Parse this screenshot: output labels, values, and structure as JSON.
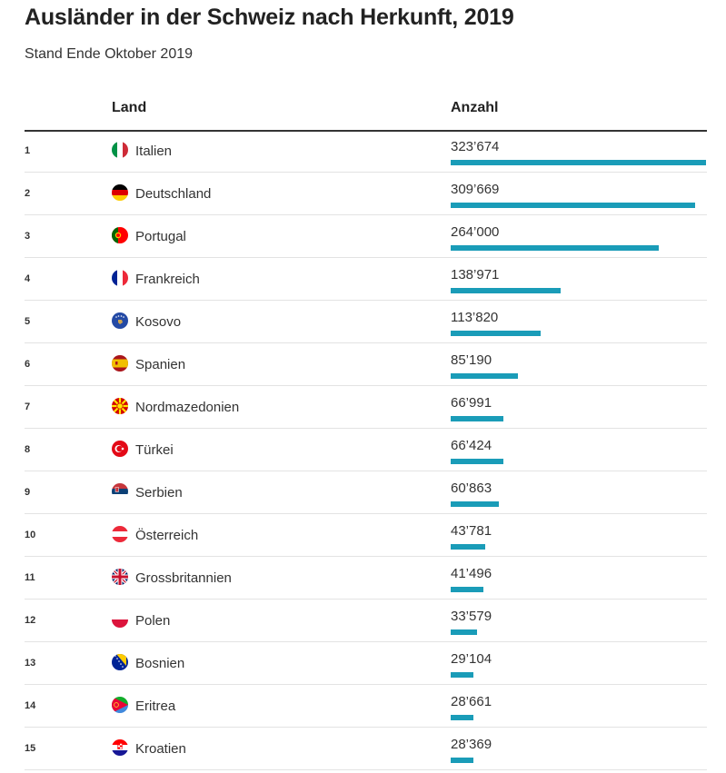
{
  "header": {
    "title": "Ausländer in der Schweiz nach Herkunft, 2019",
    "subtitle": "Stand Ende Oktober 2019"
  },
  "table": {
    "col_land": "Land",
    "col_anzahl": "Anzahl"
  },
  "colors": {
    "bar": "#1a9cb8"
  },
  "chart_data": {
    "type": "bar",
    "orientation": "horizontal",
    "title": "Ausländer in der Schweiz nach Herkunft, 2019",
    "subtitle": "Stand Ende Oktober 2019",
    "xlim": [
      0,
      323674
    ],
    "rows": [
      {
        "rank": "1",
        "country": "Italien",
        "flag": "italy-flag-icon",
        "label": "323’674",
        "value": 323674
      },
      {
        "rank": "2",
        "country": "Deutschland",
        "flag": "germany-flag-icon",
        "label": "309’669",
        "value": 309669
      },
      {
        "rank": "3",
        "country": "Portugal",
        "flag": "portugal-flag-icon",
        "label": "264’000",
        "value": 264000
      },
      {
        "rank": "4",
        "country": "Frankreich",
        "flag": "france-flag-icon",
        "label": "138’971",
        "value": 138971
      },
      {
        "rank": "5",
        "country": "Kosovo",
        "flag": "kosovo-flag-icon",
        "label": "113’820",
        "value": 113820
      },
      {
        "rank": "6",
        "country": "Spanien",
        "flag": "spain-flag-icon",
        "label": "85’190",
        "value": 85190
      },
      {
        "rank": "7",
        "country": "Nordmazedonien",
        "flag": "north-macedonia-flag-icon",
        "label": "66’991",
        "value": 66991
      },
      {
        "rank": "8",
        "country": "Türkei",
        "flag": "turkey-flag-icon",
        "label": "66’424",
        "value": 66424
      },
      {
        "rank": "9",
        "country": "Serbien",
        "flag": "serbia-flag-icon",
        "label": "60’863",
        "value": 60863
      },
      {
        "rank": "10",
        "country": "Österreich",
        "flag": "austria-flag-icon",
        "label": "43’781",
        "value": 43781
      },
      {
        "rank": "11",
        "country": "Grossbritannien",
        "flag": "uk-flag-icon",
        "label": "41’496",
        "value": 41496
      },
      {
        "rank": "12",
        "country": "Polen",
        "flag": "poland-flag-icon",
        "label": "33’579",
        "value": 33579
      },
      {
        "rank": "13",
        "country": "Bosnien",
        "flag": "bosnia-flag-icon",
        "label": "29’104",
        "value": 29104
      },
      {
        "rank": "14",
        "country": "Eritrea",
        "flag": "eritrea-flag-icon",
        "label": "28’661",
        "value": 28661
      },
      {
        "rank": "15",
        "country": "Kroatien",
        "flag": "croatia-flag-icon",
        "label": "28’369",
        "value": 28369
      }
    ]
  }
}
